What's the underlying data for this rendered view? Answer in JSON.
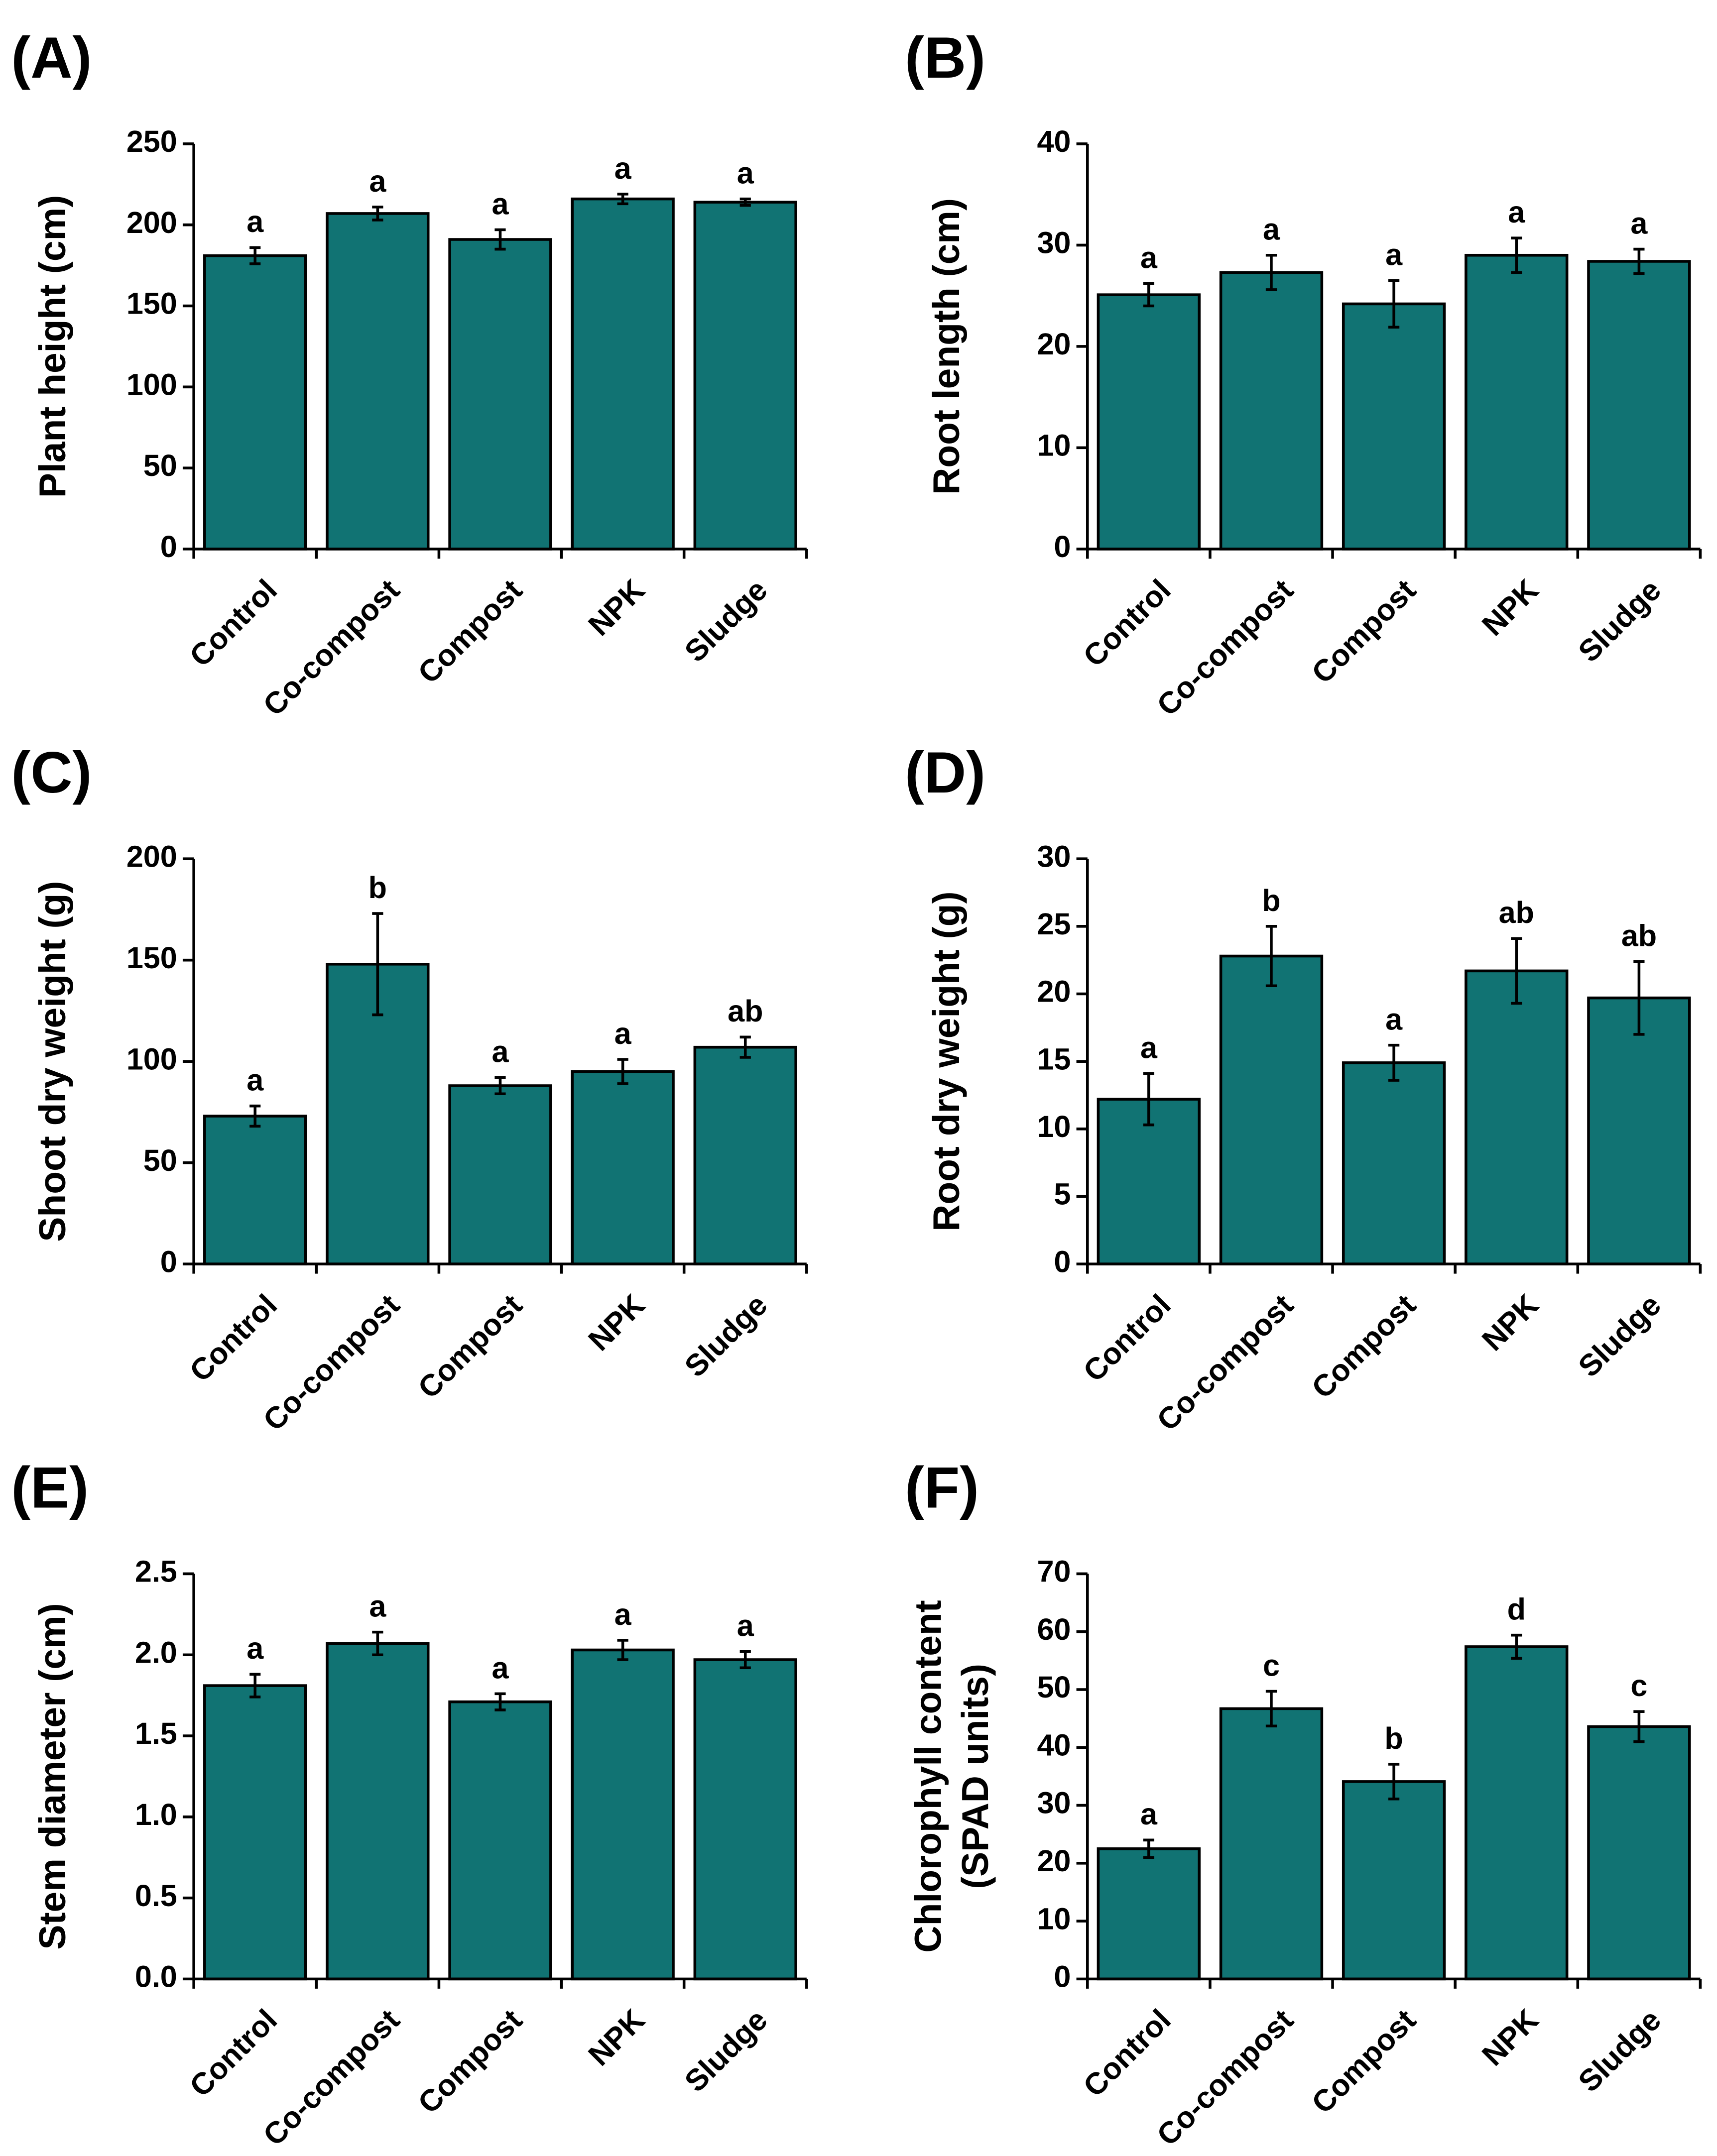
{
  "chart_data": [
    {
      "type": "bar",
      "panel_label": "(A)",
      "ylabel": [
        "Plant height (cm)"
      ],
      "color": "#117373",
      "categories": [
        "Control",
        "Co-compost",
        "Compost",
        "NPK",
        "Sludge"
      ],
      "values": [
        181,
        207,
        191,
        216,
        214
      ],
      "errors": [
        5,
        4,
        6,
        3,
        2
      ],
      "annotations": [
        "a",
        "a",
        "a",
        "a",
        "a"
      ],
      "ylim": [
        0,
        250
      ],
      "yticks": [
        0,
        50,
        100,
        150,
        200,
        250
      ]
    },
    {
      "type": "bar",
      "panel_label": "(B)",
      "ylabel": [
        "Root length (cm)"
      ],
      "color": "#117373",
      "categories": [
        "Control",
        "Co-compost",
        "Compost",
        "NPK",
        "Sludge"
      ],
      "values": [
        25.1,
        27.3,
        24.2,
        29.0,
        28.4
      ],
      "errors": [
        1.1,
        1.7,
        2.3,
        1.7,
        1.2
      ],
      "annotations": [
        "a",
        "a",
        "a",
        "a",
        "a"
      ],
      "ylim": [
        0,
        40
      ],
      "yticks": [
        0,
        10,
        20,
        30,
        40
      ]
    },
    {
      "type": "bar",
      "panel_label": "(C)",
      "ylabel": [
        "Shoot dry weight (g)"
      ],
      "color": "#117373",
      "categories": [
        "Control",
        "Co-compost",
        "Compost",
        "NPK",
        "Sludge"
      ],
      "values": [
        73,
        148,
        88,
        95,
        107
      ],
      "errors": [
        5,
        25,
        4,
        6,
        5
      ],
      "annotations": [
        "a",
        "b",
        "a",
        "a",
        "ab"
      ],
      "ylim": [
        0,
        200
      ],
      "yticks": [
        0,
        50,
        100,
        150,
        200
      ]
    },
    {
      "type": "bar",
      "panel_label": "(D)",
      "ylabel": [
        "Root dry weight (g)"
      ],
      "color": "#117373",
      "categories": [
        "Control",
        "Co-compost",
        "Compost",
        "NPK",
        "Sludge"
      ],
      "values": [
        12.2,
        22.8,
        14.9,
        21.7,
        19.7
      ],
      "errors": [
        1.9,
        2.2,
        1.3,
        2.4,
        2.7
      ],
      "annotations": [
        "a",
        "b",
        "a",
        "ab",
        "ab"
      ],
      "ylim": [
        0,
        30
      ],
      "yticks": [
        0,
        5,
        10,
        15,
        20,
        25,
        30
      ]
    },
    {
      "type": "bar",
      "panel_label": "(E)",
      "ylabel": [
        "Stem diameter (cm)"
      ],
      "color": "#117373",
      "categories": [
        "Control",
        "Co-compost",
        "Compost",
        "NPK",
        "Sludge"
      ],
      "values": [
        1.81,
        2.07,
        1.71,
        2.03,
        1.97
      ],
      "errors": [
        0.07,
        0.07,
        0.05,
        0.06,
        0.05
      ],
      "annotations": [
        "a",
        "a",
        "a",
        "a",
        "a"
      ],
      "ylim": [
        0,
        2.5
      ],
      "yticks": [
        {
          "value": 0,
          "label": "0.0"
        },
        0.5,
        {
          "value": 1,
          "label": "1.0"
        },
        1.5,
        {
          "value": 2,
          "label": "2.0"
        },
        2.5
      ]
    },
    {
      "type": "bar",
      "panel_label": "(F)",
      "ylabel": [
        "Chlorophyll content",
        "(SPAD units)"
      ],
      "color": "#117373",
      "categories": [
        "Control",
        "Co-compost",
        "Compost",
        "NPK",
        "Sludge"
      ],
      "values": [
        22.5,
        46.7,
        34.1,
        57.4,
        43.6
      ],
      "errors": [
        1.5,
        3.0,
        3.0,
        2.0,
        2.6
      ],
      "annotations": [
        "a",
        "c",
        "b",
        "d",
        "c"
      ],
      "ylim": [
        0,
        70
      ],
      "yticks": [
        0,
        10,
        20,
        30,
        40,
        50,
        60,
        70
      ]
    }
  ]
}
